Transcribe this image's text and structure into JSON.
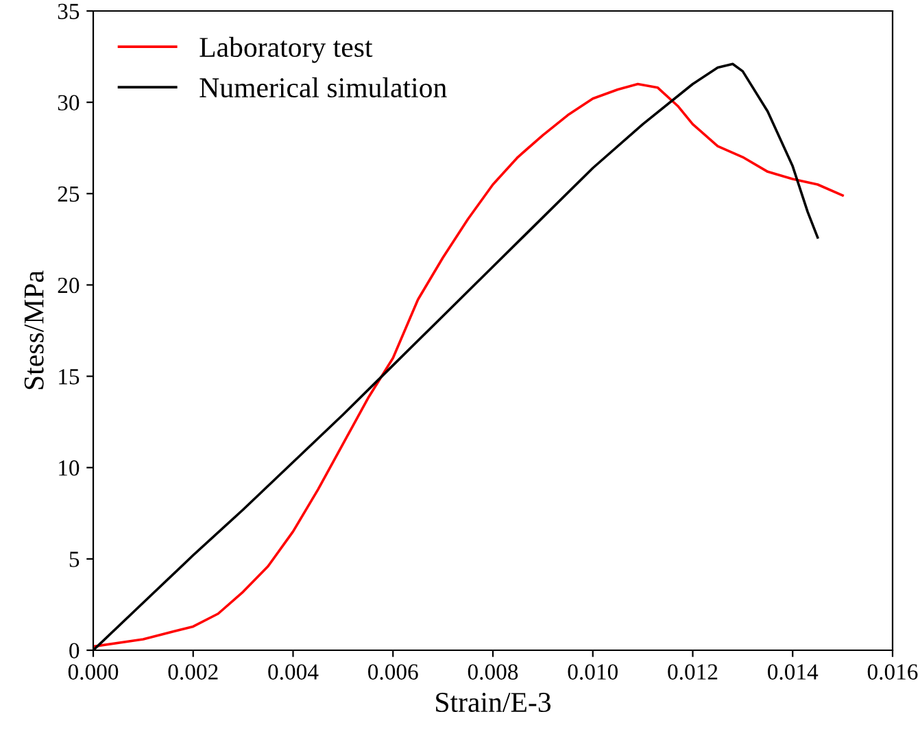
{
  "chart_data": {
    "type": "line",
    "xlabel": "Strain/E-3",
    "ylabel": "Stess/MPa",
    "xlim": [
      0,
      0.016
    ],
    "xticks": [
      {
        "value": 0,
        "label": "0.000"
      },
      {
        "value": 0.002,
        "label": "0.002"
      },
      {
        "value": 0.004,
        "label": "0.004"
      },
      {
        "value": 0.006,
        "label": "0.006"
      },
      {
        "value": 0.008,
        "label": "0.008"
      },
      {
        "value": 0.01,
        "label": "0.010"
      },
      {
        "value": 0.012,
        "label": "0.012"
      },
      {
        "value": 0.014,
        "label": "0.014"
      },
      {
        "value": 0.016,
        "label": "0.016"
      }
    ],
    "ylim": [
      0,
      35
    ],
    "yticks": [
      0,
      5,
      10,
      15,
      20,
      25,
      30,
      35
    ],
    "grid": false,
    "legend": "top left",
    "marker": "none",
    "line_style": "solid",
    "series": [
      {
        "name": "Laboratory test",
        "color": "#ff0000",
        "x": [
          0,
          0.001,
          0.002,
          0.0025,
          0.003,
          0.0035,
          0.004,
          0.0045,
          0.005,
          0.0055,
          0.006,
          0.0065,
          0.007,
          0.0075,
          0.008,
          0.0085,
          0.009,
          0.0095,
          0.01,
          0.0105,
          0.0109,
          0.0113,
          0.0117,
          0.012,
          0.0125,
          0.013,
          0.0135,
          0.014,
          0.0145,
          0.015
        ],
        "values": [
          0.2,
          0.6,
          1.3,
          2,
          3.2,
          4.6,
          6.5,
          8.8,
          11.3,
          13.8,
          16,
          19.2,
          21.5,
          23.6,
          25.5,
          27,
          28.2,
          29.3,
          30.2,
          30.7,
          31,
          30.8,
          29.8,
          28.8,
          27.6,
          27,
          26.2,
          25.8,
          25.5,
          24.9
        ]
      },
      {
        "name": "Numerical simulation",
        "color": "#000000",
        "x": [
          0,
          0.001,
          0.002,
          0.003,
          0.004,
          0.005,
          0.006,
          0.007,
          0.008,
          0.009,
          0.01,
          0.011,
          0.012,
          0.0125,
          0.0128,
          0.013,
          0.0135,
          0.014,
          0.0143,
          0.0145
        ],
        "values": [
          0,
          2.6,
          5.2,
          7.7,
          10.3,
          12.9,
          15.6,
          18.3,
          21,
          23.7,
          26.4,
          28.8,
          31,
          31.9,
          32.1,
          31.7,
          29.5,
          26.5,
          24,
          22.6
        ]
      }
    ]
  }
}
